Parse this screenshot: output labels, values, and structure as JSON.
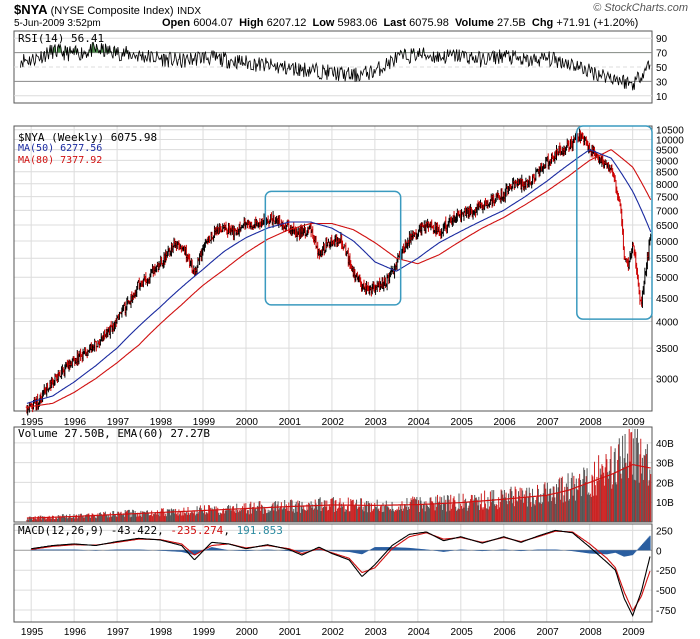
{
  "header": {
    "symbol": "$NYA",
    "name": "(NYSE Composite Index)",
    "exchange": "INDX",
    "date": "5-Jun-2009 3:52pm",
    "open_label": "Open",
    "open": "6004.07",
    "high_label": "High",
    "high": "6207.12",
    "low_label": "Low",
    "low": "5983.06",
    "last_label": "Last",
    "last": "6075.98",
    "volume_label": "Volume",
    "volume": "27.5B",
    "chg_label": "Chg",
    "chg": "+71.91 (+1.20%)",
    "brand": "© StockCharts.com"
  },
  "colors": {
    "price": "#000000",
    "up_bar": "#000000",
    "down_bar": "#cc0000",
    "ma50": "#1a2aa0",
    "ma80": "#d01010",
    "box": "#3a9abf",
    "volume_up": "#555555",
    "volume_down": "#cc2222",
    "rsi_fill": "#4a8a4a",
    "macd_hist": "#2a5ea0",
    "signal": "#d01010"
  },
  "chart_data": [
    {
      "type": "line",
      "panel": "rsi",
      "legend": "RSI(14) 56.41",
      "y_ticks": [
        10,
        30,
        50,
        70,
        90
      ],
      "ylim": [
        0,
        100
      ],
      "x": [
        1995.0,
        1995.5,
        1996.0,
        1996.5,
        1997.0,
        1997.5,
        1998.0,
        1998.5,
        1999.0,
        1999.5,
        2000.0,
        2000.5,
        2001.0,
        2001.5,
        2002.0,
        2002.5,
        2003.0,
        2003.5,
        2004.0,
        2004.5,
        2005.0,
        2005.5,
        2006.0,
        2006.5,
        2007.0,
        2007.5,
        2008.0,
        2008.5,
        2009.0,
        2009.42
      ],
      "values": [
        60,
        72,
        68,
        74,
        70,
        66,
        62,
        58,
        64,
        60,
        56,
        52,
        48,
        46,
        42,
        38,
        44,
        62,
        68,
        64,
        66,
        60,
        66,
        58,
        62,
        56,
        44,
        36,
        26,
        56
      ]
    },
    {
      "type": "line",
      "panel": "price",
      "legend": [
        "$NYA (Weekly) 6075.98",
        "MA(50) 6277.56",
        "MA(80) 7377.92"
      ],
      "x_ticks": [
        "1995",
        "1996",
        "1997",
        "1998",
        "1999",
        "2000",
        "2001",
        "2002",
        "2003",
        "2004",
        "2005",
        "2006",
        "2007",
        "2008",
        "2009"
      ],
      "y_ticks": [
        3000,
        3500,
        4000,
        4500,
        5000,
        5500,
        6000,
        6500,
        7000,
        7500,
        8000,
        8500,
        9000,
        9500,
        10000,
        10500
      ],
      "ylim": [
        2550,
        10700
      ],
      "scale": "log",
      "series": [
        {
          "name": "$NYA",
          "x": [
            1994.9,
            1995.2,
            1995.5,
            1995.8,
            1996.0,
            1996.3,
            1996.6,
            1996.9,
            1997.2,
            1997.5,
            1997.8,
            1998.1,
            1998.4,
            1998.6,
            1998.8,
            1999.1,
            1999.4,
            1999.7,
            2000.0,
            2000.3,
            2000.6,
            2000.9,
            2001.2,
            2001.5,
            2001.7,
            2001.9,
            2002.2,
            2002.5,
            2002.8,
            2003.1,
            2003.3,
            2003.6,
            2003.9,
            2004.2,
            2004.5,
            2004.8,
            2005.1,
            2005.4,
            2005.7,
            2006.0,
            2006.3,
            2006.6,
            2006.9,
            2007.2,
            2007.5,
            2007.8,
            2008.0,
            2008.3,
            2008.5,
            2008.7,
            2008.8,
            2008.9,
            2009.0,
            2009.1,
            2009.2,
            2009.3,
            2009.42
          ],
          "values": [
            2600,
            2700,
            2950,
            3150,
            3300,
            3450,
            3600,
            3900,
            4300,
            4800,
            5100,
            5500,
            6000,
            5700,
            5100,
            6100,
            6400,
            6300,
            6500,
            6600,
            6700,
            6500,
            6200,
            6400,
            5600,
            5900,
            6100,
            5100,
            4700,
            4800,
            4900,
            5600,
            6200,
            6500,
            6300,
            6700,
            6900,
            7100,
            7300,
            7600,
            8000,
            8000,
            8700,
            9300,
            9700,
            10200,
            9500,
            9000,
            8600,
            7200,
            5600,
            5200,
            5900,
            5100,
            4300,
            5200,
            6076
          ]
        },
        {
          "name": "MA(50)",
          "x": [
            1994.9,
            1995.5,
            1996.0,
            1996.5,
            1997.0,
            1997.5,
            1998.0,
            1998.5,
            1999.0,
            1999.5,
            2000.0,
            2000.5,
            2001.0,
            2001.5,
            2002.0,
            2002.5,
            2003.0,
            2003.5,
            2004.0,
            2004.5,
            2005.0,
            2005.5,
            2006.0,
            2006.5,
            2007.0,
            2007.5,
            2008.0,
            2008.5,
            2009.0,
            2009.42
          ],
          "values": [
            2650,
            2750,
            2950,
            3200,
            3500,
            3900,
            4300,
            4750,
            5200,
            5700,
            6100,
            6400,
            6600,
            6600,
            6400,
            6000,
            5400,
            5150,
            5500,
            5950,
            6300,
            6650,
            7000,
            7500,
            8100,
            8800,
            9500,
            9100,
            7700,
            6278
          ]
        },
        {
          "name": "MA(80)",
          "x": [
            1994.9,
            1995.5,
            1996.0,
            1996.5,
            1997.0,
            1997.5,
            1998.0,
            1998.5,
            1999.0,
            1999.5,
            2000.0,
            2000.5,
            2001.0,
            2001.5,
            2002.0,
            2002.5,
            2003.0,
            2003.5,
            2004.0,
            2004.5,
            2005.0,
            2005.5,
            2006.0,
            2006.5,
            2007.0,
            2007.5,
            2008.0,
            2008.5,
            2009.0,
            2009.42
          ],
          "values": [
            2600,
            2650,
            2800,
            3000,
            3250,
            3550,
            3950,
            4350,
            4800,
            5200,
            5650,
            6050,
            6350,
            6550,
            6550,
            6350,
            5950,
            5500,
            5350,
            5600,
            6000,
            6400,
            6750,
            7200,
            7700,
            8300,
            9000,
            9500,
            8700,
            7378
          ]
        }
      ]
    },
    {
      "type": "bar",
      "panel": "volume",
      "legend": "Volume 27.50B, EMA(60) 27.27B",
      "y_ticks": [
        "10B",
        "20B",
        "30B",
        "40B"
      ],
      "ylim": [
        0,
        48
      ],
      "x": [
        1995.0,
        1996.0,
        1997.0,
        1998.0,
        1999.0,
        2000.0,
        2001.0,
        2002.0,
        2003.0,
        2004.0,
        2005.0,
        2006.0,
        2007.0,
        2007.5,
        2008.0,
        2008.5,
        2009.0,
        2009.42
      ],
      "values": [
        2,
        3,
        4,
        5,
        6,
        7,
        8,
        9,
        8,
        9,
        10,
        12,
        14,
        17,
        22,
        27,
        38,
        27.5
      ],
      "ema": [
        2,
        2.8,
        3.8,
        4.8,
        5.8,
        6.8,
        7.8,
        8.6,
        8.4,
        8.8,
        9.8,
        11.5,
        13.5,
        16,
        20,
        24,
        29,
        27.27
      ]
    },
    {
      "type": "line",
      "panel": "macd",
      "legend_name": "MACD(12,26,9)",
      "legend_macd": "-43.422",
      "legend_signal": "-235.274",
      "legend_hist": "191.853",
      "y_ticks": [
        -750,
        -500,
        -250,
        0,
        250
      ],
      "ylim": [
        -900,
        330
      ],
      "x": [
        1995.0,
        1995.5,
        1996.0,
        1996.5,
        1997.0,
        1997.5,
        1998.0,
        1998.5,
        1998.8,
        1999.2,
        1999.6,
        2000.0,
        2000.5,
        2001.0,
        2001.3,
        2001.7,
        2002.0,
        2002.4,
        2002.7,
        2003.0,
        2003.4,
        2003.8,
        2004.2,
        2004.6,
        2005.0,
        2005.5,
        2006.0,
        2006.4,
        2006.8,
        2007.2,
        2007.6,
        2008.0,
        2008.4,
        2008.6,
        2008.8,
        2009.0,
        2009.2,
        2009.42
      ],
      "macd": [
        20,
        60,
        80,
        60,
        110,
        150,
        130,
        60,
        -120,
        100,
        80,
        20,
        70,
        10,
        -60,
        40,
        -40,
        -120,
        -330,
        -180,
        60,
        200,
        230,
        120,
        170,
        90,
        170,
        100,
        180,
        250,
        220,
        40,
        -150,
        -250,
        -600,
        -820,
        -520,
        -43
      ],
      "signal": [
        10,
        50,
        70,
        65,
        100,
        140,
        135,
        80,
        -60,
        60,
        80,
        30,
        60,
        20,
        -40,
        20,
        -30,
        -100,
        -280,
        -220,
        20,
        170,
        220,
        140,
        160,
        100,
        160,
        110,
        170,
        240,
        230,
        80,
        -100,
        -220,
        -520,
        -760,
        -580,
        -235
      ]
    }
  ],
  "annotations": [
    {
      "label": "2001-2003 bottom region",
      "x_from": 2000.45,
      "x_to": 2003.6,
      "y_from": 4350,
      "y_to": 7700
    },
    {
      "label": "2008-2009 decline region",
      "x_from": 2007.7,
      "x_to": 2009.45,
      "y_from": 4050,
      "y_to": 10700
    }
  ]
}
